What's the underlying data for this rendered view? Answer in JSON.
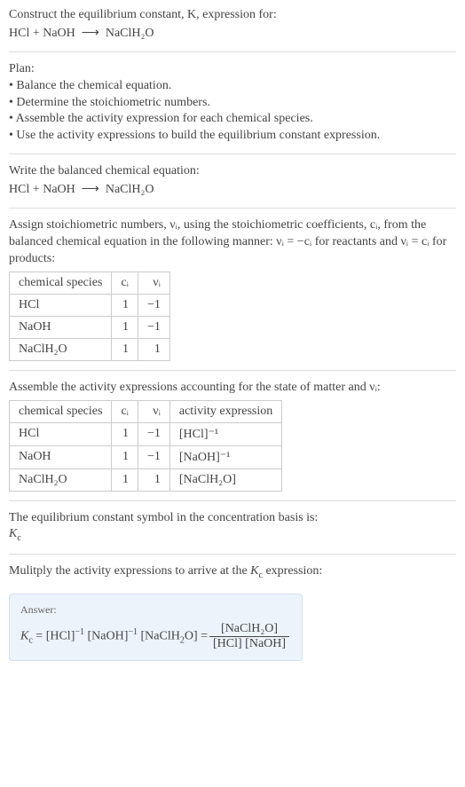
{
  "header": {
    "line1": "Construct the equilibrium constant, K, expression for:",
    "eq_lhs": "HCl + NaOH",
    "eq_arrow": "⟶",
    "eq_rhs": "NaClH₂O"
  },
  "plan": {
    "title": "Plan:",
    "b1": "• Balance the chemical equation.",
    "b2": "• Determine the stoichiometric numbers.",
    "b3": "• Assemble the activity expression for each chemical species.",
    "b4": "• Use the activity expressions to build the equilibrium constant expression."
  },
  "balanced": {
    "title": "Write the balanced chemical equation:",
    "eq_lhs": "HCl + NaOH",
    "eq_arrow": "⟶",
    "eq_rhs": "NaClH₂O"
  },
  "stoich": {
    "intro1": "Assign stoichiometric numbers, νᵢ, using the stoichiometric coefficients, cᵢ, from the balanced chemical equation in the following manner: νᵢ = −cᵢ for reactants and νᵢ = cᵢ for products:",
    "h1": "chemical species",
    "h2": "cᵢ",
    "h3": "νᵢ",
    "r1c1": "HCl",
    "r1c2": "1",
    "r1c3": "−1",
    "r2c1": "NaOH",
    "r2c2": "1",
    "r2c3": "−1",
    "r3c1": "NaClH₂O",
    "r3c2": "1",
    "r3c3": "1"
  },
  "activity": {
    "intro": "Assemble the activity expressions accounting for the state of matter and νᵢ:",
    "h1": "chemical species",
    "h2": "cᵢ",
    "h3": "νᵢ",
    "h4": "activity expression",
    "r1c1": "HCl",
    "r1c2": "1",
    "r1c3": "−1",
    "r1c4": "[HCl]⁻¹",
    "r2c1": "NaOH",
    "r2c2": "1",
    "r2c3": "−1",
    "r2c4": "[NaOH]⁻¹",
    "r3c1": "NaClH₂O",
    "r3c2": "1",
    "r3c3": "1",
    "r3c4": "[NaClH₂O]"
  },
  "kc_symbol": {
    "line1": "The equilibrium constant symbol in the concentration basis is:",
    "line2": "K𐞥"
  },
  "multiply": {
    "line": "Mulitply the activity expressions to arrive at the K𐞥 expression:"
  },
  "answer": {
    "label": "Answer:",
    "lhs": "K𐞥 = [HCl]⁻¹ [NaOH]⁻¹ [NaClH₂O] =",
    "num": "[NaClH₂O]",
    "den": "[HCl] [NaOH]"
  }
}
